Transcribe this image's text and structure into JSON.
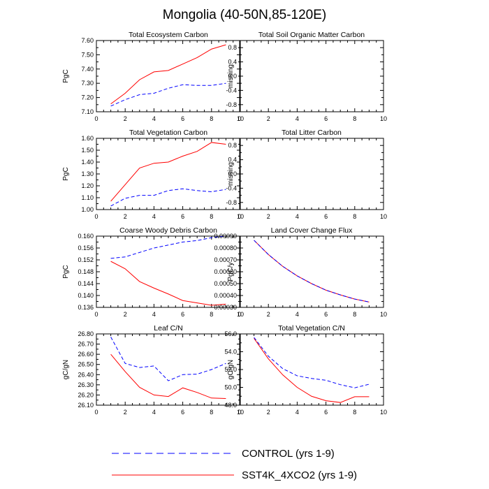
{
  "title": "Mongolia (40-50N,85-120E)",
  "colors": {
    "control": "#0000ff",
    "sst4k": "#ff0000",
    "axis": "#000000",
    "background": "#ffffff"
  },
  "legend": [
    {
      "name": "CONTROL (yrs 1-9)",
      "color": "#0000ff",
      "dash": "dashed"
    },
    {
      "name": "SST4K_4XCO2 (yrs 1-9)",
      "color": "#ff0000",
      "dash": "solid"
    }
  ],
  "chart_data": [
    {
      "type": "line",
      "title": "Total Ecosystem Carbon",
      "xlabel": "",
      "ylabel": "PgC",
      "xlim": [
        0,
        10
      ],
      "ylim": [
        7.1,
        7.6
      ],
      "xticks": [
        0,
        2,
        4,
        6,
        8,
        10
      ],
      "xtick_labels": [
        "0",
        "2",
        "4",
        "6",
        "8",
        "10"
      ],
      "yticks": [
        7.1,
        7.2,
        7.3,
        7.4,
        7.5,
        7.6
      ],
      "ytick_labels": [
        "7.10",
        "7.20",
        "7.30",
        "7.40",
        "7.50",
        "7.60"
      ],
      "x": [
        1,
        2,
        3,
        4,
        5,
        6,
        7,
        8,
        9
      ],
      "series": [
        {
          "name": "CONTROL (yrs 1-9)",
          "color": "#0000ff",
          "dash": "dashed",
          "values": [
            7.14,
            7.185,
            7.22,
            7.23,
            7.265,
            7.29,
            7.285,
            7.285,
            7.3
          ]
        },
        {
          "name": "SST4K_4XCO2 (yrs 1-9)",
          "color": "#ff0000",
          "dash": "solid",
          "values": [
            7.155,
            7.23,
            7.325,
            7.38,
            7.39,
            7.435,
            7.48,
            7.54,
            7.57
          ]
        }
      ]
    },
    {
      "type": "line",
      "title": "Total Soil Organic Matter Carbon",
      "xlabel": "",
      "ylabel": "missing",
      "xlim": [
        0,
        10
      ],
      "ylim": [
        -1.0,
        1.0
      ],
      "xticks": [
        0,
        2,
        4,
        6,
        8,
        10
      ],
      "xtick_labels": [
        "0",
        "2",
        "4",
        "6",
        "8",
        "10"
      ],
      "yticks": [
        -0.8,
        -0.4,
        0.0,
        0.4,
        0.8
      ],
      "ytick_labels": [
        "-0.8",
        "-0.4",
        "0.0",
        "0.4",
        "0.8"
      ],
      "x": [],
      "series": []
    },
    {
      "type": "line",
      "title": "Total Vegetation Carbon",
      "xlabel": "",
      "ylabel": "PgC",
      "xlim": [
        0,
        10
      ],
      "ylim": [
        1.0,
        1.6
      ],
      "xticks": [
        0,
        2,
        4,
        6,
        8,
        10
      ],
      "xtick_labels": [
        "0",
        "2",
        "4",
        "6",
        "8",
        "10"
      ],
      "yticks": [
        1.0,
        1.1,
        1.2,
        1.3,
        1.4,
        1.5,
        1.6
      ],
      "ytick_labels": [
        "1.00",
        "1.10",
        "1.20",
        "1.30",
        "1.40",
        "1.50",
        "1.60"
      ],
      "x": [
        1,
        2,
        3,
        4,
        5,
        6,
        7,
        8,
        9
      ],
      "series": [
        {
          "name": "CONTROL (yrs 1-9)",
          "color": "#0000ff",
          "dash": "dashed",
          "values": [
            1.03,
            1.095,
            1.12,
            1.12,
            1.16,
            1.175,
            1.16,
            1.15,
            1.17
          ]
        },
        {
          "name": "SST4K_4XCO2 (yrs 1-9)",
          "color": "#ff0000",
          "dash": "solid",
          "values": [
            1.07,
            1.21,
            1.35,
            1.39,
            1.4,
            1.45,
            1.49,
            1.565,
            1.55
          ]
        }
      ]
    },
    {
      "type": "line",
      "title": "Total Litter Carbon",
      "xlabel": "",
      "ylabel": "missing",
      "xlim": [
        0,
        10
      ],
      "ylim": [
        -1.0,
        1.0
      ],
      "xticks": [
        0,
        2,
        4,
        6,
        8,
        10
      ],
      "xtick_labels": [
        "0",
        "2",
        "4",
        "6",
        "8",
        "10"
      ],
      "yticks": [
        -0.8,
        -0.4,
        0.0,
        0.4,
        0.8
      ],
      "ytick_labels": [
        "-0.8",
        "-0.4",
        "0.0",
        "0.4",
        "0.8"
      ],
      "x": [],
      "series": []
    },
    {
      "type": "line",
      "title": "Coarse Woody Debris Carbon",
      "xlabel": "",
      "ylabel": "PgC",
      "xlim": [
        0,
        10
      ],
      "ylim": [
        0.136,
        0.16
      ],
      "xticks": [
        0,
        2,
        4,
        6,
        8,
        10
      ],
      "xtick_labels": [
        "0",
        "2",
        "4",
        "6",
        "8",
        "10"
      ],
      "yticks": [
        0.136,
        0.14,
        0.144,
        0.148,
        0.152,
        0.156,
        0.16
      ],
      "ytick_labels": [
        "0.136",
        "0.140",
        "0.144",
        "0.148",
        "0.152",
        "0.156",
        "0.160"
      ],
      "x": [
        1,
        2,
        3,
        4,
        5,
        6,
        7,
        8,
        9
      ],
      "series": [
        {
          "name": "CONTROL (yrs 1-9)",
          "color": "#0000ff",
          "dash": "dashed",
          "values": [
            0.1525,
            0.153,
            0.1545,
            0.156,
            0.157,
            0.158,
            0.1585,
            0.1595,
            0.16
          ]
        },
        {
          "name": "SST4K_4XCO2 (yrs 1-9)",
          "color": "#ff0000",
          "dash": "solid",
          "values": [
            0.1515,
            0.149,
            0.1447,
            0.1425,
            0.1405,
            0.1383,
            0.1375,
            0.1367,
            0.1371
          ]
        }
      ]
    },
    {
      "type": "line",
      "title": "Land Cover Change Flux",
      "xlabel": "",
      "ylabel": "PgC/y",
      "xlim": [
        0,
        10
      ],
      "ylim": [
        0.0003,
        0.0009
      ],
      "xticks": [
        0,
        2,
        4,
        6,
        8,
        10
      ],
      "xtick_labels": [
        "0",
        "2",
        "4",
        "6",
        "8",
        "10"
      ],
      "yticks": [
        0.0003,
        0.0004,
        0.0005,
        0.0006,
        0.0007,
        0.0008,
        0.0009
      ],
      "ytick_labels": [
        "0.00030",
        "0.00040",
        "0.00050",
        "0.00060",
        "0.00070",
        "0.00080",
        "0.00090"
      ],
      "x": [
        1,
        2,
        3,
        4,
        5,
        6,
        7,
        8,
        9
      ],
      "series": [
        {
          "name": "CONTROL (yrs 1-9)",
          "color": "#0000ff",
          "dash": "dashed",
          "values": [
            0.000865,
            0.000745,
            0.000645,
            0.000565,
            0.0005,
            0.000445,
            0.000405,
            0.00037,
            0.000345
          ]
        },
        {
          "name": "SST4K_4XCO2 (yrs 1-9)",
          "color": "#ff0000",
          "dash": "solid",
          "values": [
            0.000865,
            0.000745,
            0.000645,
            0.000565,
            0.0005,
            0.000445,
            0.000405,
            0.00037,
            0.000345
          ]
        }
      ]
    },
    {
      "type": "line",
      "title": "Leaf C/N",
      "xlabel": "",
      "ylabel": "gC/gN",
      "xlim": [
        0,
        10
      ],
      "ylim": [
        26.1,
        26.8
      ],
      "xticks": [
        0,
        2,
        4,
        6,
        8,
        10
      ],
      "xtick_labels": [
        "0",
        "2",
        "4",
        "6",
        "8",
        "10"
      ],
      "yticks": [
        26.1,
        26.2,
        26.3,
        26.4,
        26.5,
        26.6,
        26.7,
        26.8
      ],
      "ytick_labels": [
        "26.10",
        "26.20",
        "26.30",
        "26.40",
        "26.50",
        "26.60",
        "26.70",
        "26.80"
      ],
      "x": [
        1,
        2,
        3,
        4,
        5,
        6,
        7,
        8,
        9
      ],
      "series": [
        {
          "name": "CONTROL (yrs 1-9)",
          "color": "#0000ff",
          "dash": "dashed",
          "values": [
            26.77,
            26.51,
            26.47,
            26.485,
            26.34,
            26.4,
            26.405,
            26.45,
            26.51
          ]
        },
        {
          "name": "SST4K_4XCO2 (yrs 1-9)",
          "color": "#ff0000",
          "dash": "solid",
          "values": [
            26.6,
            26.43,
            26.275,
            26.2,
            26.185,
            26.27,
            26.225,
            26.17,
            26.165
          ]
        }
      ]
    },
    {
      "type": "line",
      "title": "Total Vegetation C/N",
      "xlabel": "",
      "ylabel": "gC/gN",
      "xlim": [
        0,
        10
      ],
      "ylim": [
        48.0,
        56.0
      ],
      "xticks": [
        0,
        2,
        4,
        6,
        8,
        10
      ],
      "xtick_labels": [
        "0",
        "2",
        "4",
        "6",
        "8",
        "10"
      ],
      "yticks": [
        48.0,
        50.0,
        52.0,
        54.0,
        56.0
      ],
      "ytick_labels": [
        "48.0",
        "50.0",
        "52.0",
        "54.0",
        "56.0"
      ],
      "x": [
        1,
        2,
        3,
        4,
        5,
        6,
        7,
        8,
        9
      ],
      "series": [
        {
          "name": "CONTROL (yrs 1-9)",
          "color": "#0000ff",
          "dash": "dashed",
          "values": [
            55.6,
            53.5,
            52.1,
            51.3,
            51.0,
            50.8,
            50.3,
            49.95,
            50.35
          ]
        },
        {
          "name": "SST4K_4XCO2 (yrs 1-9)",
          "color": "#ff0000",
          "dash": "solid",
          "values": [
            55.5,
            53.2,
            51.4,
            50.0,
            49.0,
            48.5,
            48.3,
            48.95,
            48.95
          ]
        }
      ]
    }
  ]
}
